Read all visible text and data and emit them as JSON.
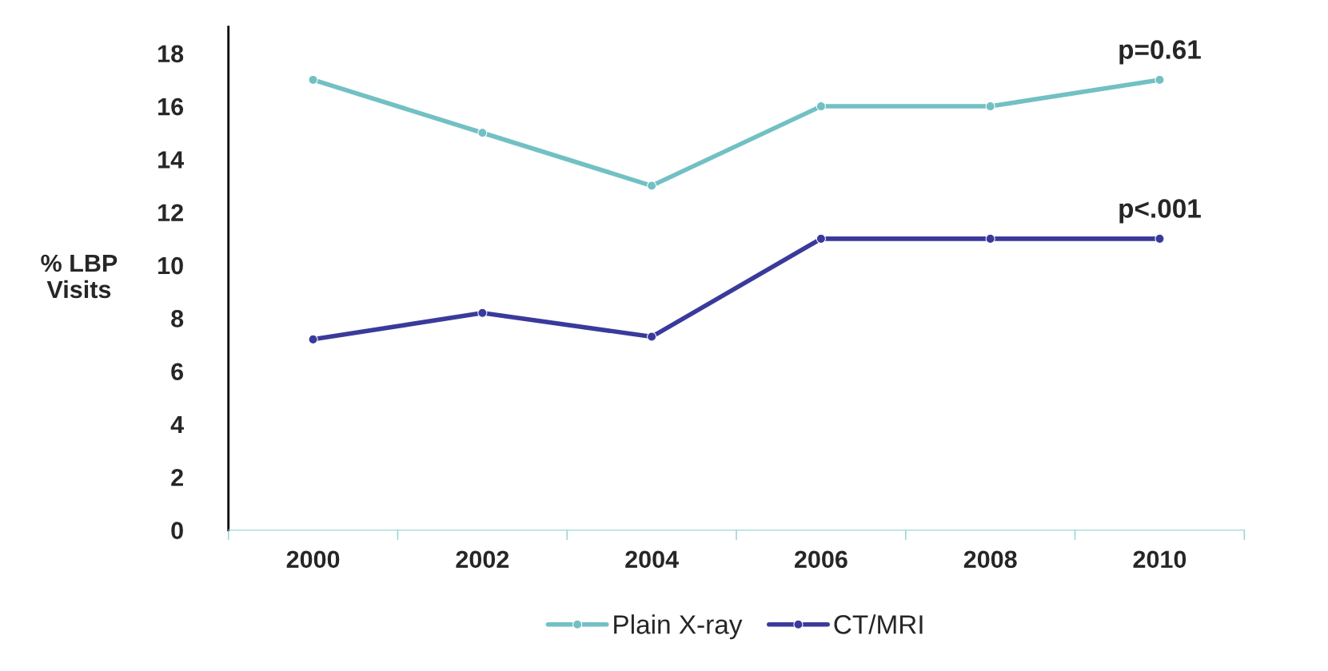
{
  "chart_data": {
    "type": "line",
    "categories": [
      "2000",
      "2002",
      "2004",
      "2006",
      "2008",
      "2010"
    ],
    "ylabel": "% LBP\nVisits",
    "series": [
      {
        "name": "Plain X-ray",
        "color": "#72c0c4",
        "values": [
          17,
          15,
          13,
          16,
          16,
          17
        ]
      },
      {
        "name": "CT/MRI",
        "color": "#3a3a9c",
        "values": [
          7.2,
          8.2,
          7.3,
          11,
          11,
          11
        ]
      }
    ],
    "ylim": [
      0,
      19
    ],
    "yticks": [
      0,
      2,
      4,
      6,
      8,
      10,
      12,
      14,
      16,
      18
    ],
    "annotations": [
      {
        "text": "p=0.61",
        "x": "2010",
        "y": 17
      },
      {
        "text": "p<.001",
        "x": "2010",
        "y": 11
      }
    ],
    "grid": false,
    "legend": "bottom",
    "marker": "circle",
    "line_style": "solid"
  }
}
